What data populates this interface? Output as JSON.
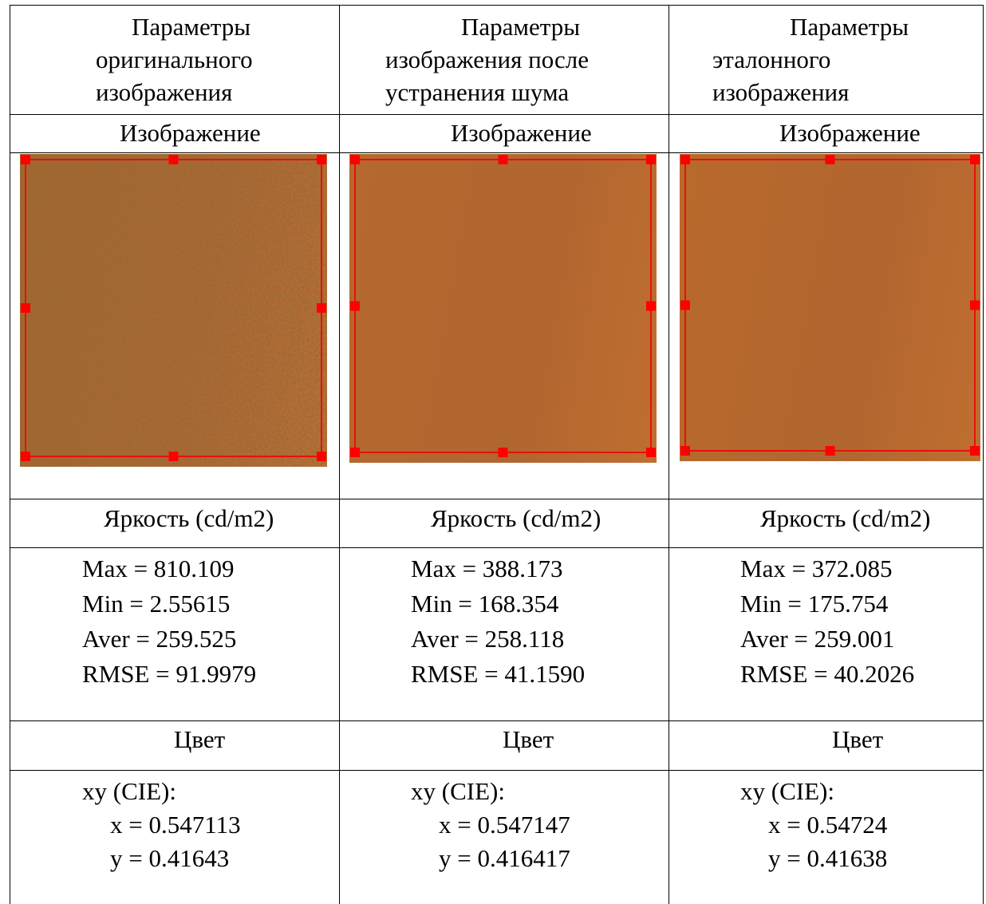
{
  "table": {
    "columns": [
      {
        "header": [
          "Параметры",
          "оригинального",
          "изображения"
        ],
        "image_label": "Изображение",
        "brightness_label": "Яркость (cd/m2)",
        "stats": [
          "Max = 810.109",
          "Min = 2.55615",
          "Aver = 259.525",
          "RMSE = 91.9979"
        ],
        "color_label": "Цвет",
        "color": [
          "xy (CIE):",
          "x = 0.547113",
          "y = 0.41643"
        ]
      },
      {
        "header": [
          "Параметры",
          "изображения после",
          "устранения шума"
        ],
        "image_label": "Изображение",
        "brightness_label": "Яркость (cd/m2)",
        "stats": [
          "Max = 388.173",
          "Min = 168.354",
          "Aver = 258.118",
          "RMSE = 41.1590"
        ],
        "color_label": "Цвет",
        "color": [
          "xy (CIE):",
          "x = 0.547147",
          "y = 0.416417"
        ]
      },
      {
        "header": [
          "Параметры",
          "эталонного",
          "изображения"
        ],
        "image_label": "Изображение",
        "brightness_label": "Яркость (cd/m2)",
        "stats": [
          "Max = 372.085",
          "Min = 175.754",
          "Aver = 259.001",
          "RMSE = 40.2026"
        ],
        "color_label": "Цвет",
        "color": [
          "xy (CIE):",
          "x = 0.54724",
          "y = 0.41638"
        ]
      }
    ]
  }
}
